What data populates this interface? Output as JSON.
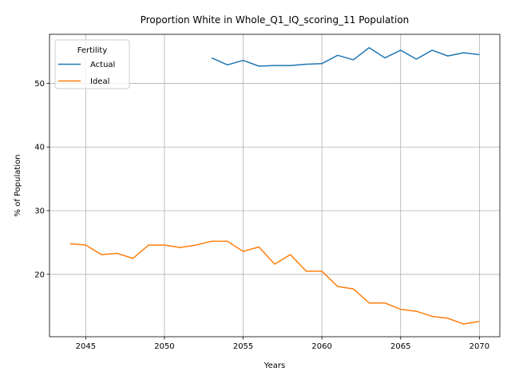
{
  "chart_data": {
    "type": "line",
    "title": "Proportion White in Whole_Q1_IQ_scoring_11 Population",
    "xlabel": "Years",
    "ylabel": "% of Population",
    "xlim": [
      2042.7,
      2071.3
    ],
    "ylim": [
      10.2,
      57.7
    ],
    "xticks": [
      2045,
      2050,
      2055,
      2060,
      2065,
      2070
    ],
    "yticks": [
      20,
      30,
      40,
      50
    ],
    "grid": true,
    "legend": {
      "title": "Fertility",
      "placement": "top-left"
    },
    "series": [
      {
        "name": "Actual",
        "color": "#1f77b4",
        "x": [
          2053,
          2054,
          2055,
          2056,
          2057,
          2058,
          2059,
          2060,
          2061,
          2062,
          2063,
          2064,
          2065,
          2066,
          2067,
          2068,
          2069,
          2070
        ],
        "values": [
          54.0,
          52.9,
          53.6,
          52.7,
          52.8,
          52.8,
          53.0,
          53.1,
          54.4,
          53.7,
          55.6,
          54.0,
          55.2,
          53.8,
          55.2,
          54.3,
          54.8,
          54.5
        ]
      },
      {
        "name": "Ideal",
        "color": "#ff7f0e",
        "x": [
          2044,
          2045,
          2046,
          2047,
          2048,
          2049,
          2050,
          2051,
          2052,
          2053,
          2054,
          2055,
          2056,
          2057,
          2058,
          2059,
          2060,
          2061,
          2062,
          2063,
          2064,
          2065,
          2066,
          2067,
          2068,
          2069,
          2070
        ],
        "values": [
          24.8,
          24.6,
          23.1,
          23.3,
          22.5,
          24.6,
          24.6,
          24.2,
          24.6,
          25.2,
          25.2,
          23.6,
          24.3,
          21.6,
          23.1,
          20.5,
          20.5,
          18.1,
          17.7,
          15.5,
          15.5,
          14.5,
          14.2,
          13.4,
          13.1,
          12.2,
          12.6
        ]
      }
    ]
  }
}
